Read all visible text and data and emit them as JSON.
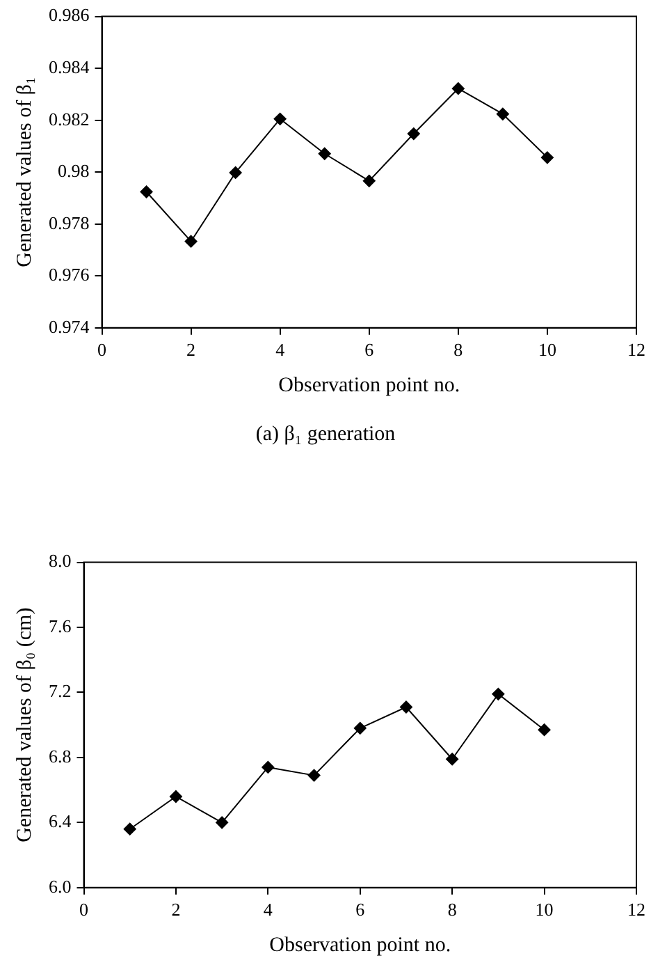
{
  "chart_data": [
    {
      "type": "line",
      "xlabel": "Observation point no.",
      "ylabel": "Generated values of β₁",
      "annotations": [
        "(a) β₁ generation"
      ],
      "x": [
        1,
        2,
        3,
        4,
        5,
        6,
        7,
        8,
        9,
        10
      ],
      "series": [
        {
          "color": "#000000",
          "values": [
            0.97924,
            0.97733,
            0.97998,
            0.98205,
            0.98071,
            0.97966,
            0.98148,
            0.98322,
            0.98224,
            0.98056
          ]
        }
      ],
      "xlim": [
        0,
        12
      ],
      "xticks": [
        0,
        2,
        4,
        6,
        8,
        10,
        12
      ],
      "ylim": [
        0.974,
        0.986
      ],
      "yticks": [
        0.974,
        0.976,
        0.978,
        0.98,
        0.982,
        0.984,
        0.986
      ],
      "grid": false,
      "legend": false,
      "marker": "diamond",
      "line_style": "solid"
    },
    {
      "type": "line",
      "xlabel": "Observation point no.",
      "ylabel": "Generated values of β₀ (cm)",
      "x": [
        1,
        2,
        3,
        4,
        5,
        6,
        7,
        8,
        9,
        10
      ],
      "series": [
        {
          "color": "#000000",
          "values": [
            6.36,
            6.56,
            6.4,
            6.74,
            6.69,
            6.98,
            7.11,
            6.79,
            7.19,
            6.97
          ]
        }
      ],
      "xlim": [
        0,
        12
      ],
      "xticks": [
        0,
        2,
        4,
        6,
        8,
        10,
        12
      ],
      "ylim": [
        6.0,
        8.0
      ],
      "yticks": [
        {
          "value": 6.0,
          "label": "6.0"
        },
        {
          "value": 6.4,
          "label": "6.4"
        },
        {
          "value": 6.8,
          "label": "6.8"
        },
        {
          "value": 7.2,
          "label": "7.2"
        },
        {
          "value": 7.6,
          "label": "7.6"
        },
        {
          "value": 8.0,
          "label": "8.0"
        }
      ],
      "grid": false,
      "legend": false,
      "marker": "diamond",
      "line_style": "solid"
    }
  ]
}
